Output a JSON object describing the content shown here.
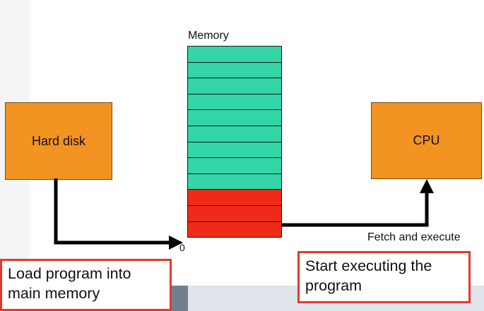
{
  "hard_disk": {
    "label": "Hard disk"
  },
  "cpu": {
    "label": "CPU"
  },
  "memory": {
    "label": "Memory",
    "free_cells": 9,
    "program_cells": 3,
    "address_zero": "0"
  },
  "fetch_label": "Fetch and execute",
  "callouts": {
    "load": "Load program into main memory",
    "start": "Start executing the program"
  },
  "colors": {
    "box_orange": "#f39322",
    "memory_free": "#33d4a6",
    "memory_program": "#f02a18",
    "callout_border": "#e2392f"
  }
}
